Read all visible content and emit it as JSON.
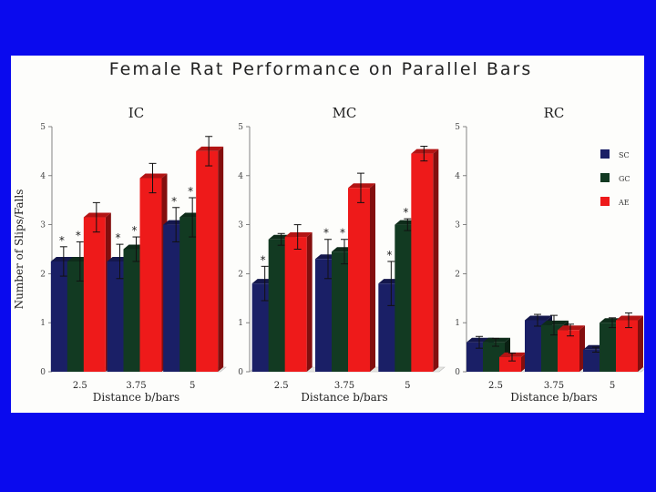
{
  "title": "Female Rat Performance on Parallel Bars",
  "colors": {
    "SC": "#1a1f66",
    "GC": "#123a22",
    "AE": "#ee1a1a",
    "slide_bg": "#0a0aee"
  },
  "chart_data": [
    {
      "type": "bar",
      "panel_title": "IC",
      "categories": [
        "2.5",
        "3.75",
        "5"
      ],
      "xlabel": "Distance b/bars",
      "ylabel": "Number of Slips/Falls",
      "ylim": [
        0,
        5
      ],
      "yticks": [
        "0",
        "1",
        "2",
        "3",
        "4",
        "5"
      ],
      "series": [
        {
          "name": "SC",
          "values": [
            2.25,
            2.25,
            3.0
          ],
          "errors": [
            0.3,
            0.35,
            0.35
          ],
          "star": [
            true,
            true,
            true
          ]
        },
        {
          "name": "GC",
          "values": [
            2.25,
            2.5,
            3.15
          ],
          "errors": [
            0.4,
            0.25,
            0.4
          ],
          "star": [
            true,
            true,
            true
          ]
        },
        {
          "name": "AE",
          "values": [
            3.15,
            3.95,
            4.5
          ],
          "errors": [
            0.3,
            0.3,
            0.3
          ],
          "star": [
            false,
            false,
            false
          ]
        }
      ]
    },
    {
      "type": "bar",
      "panel_title": "MC",
      "categories": [
        "2.5",
        "3.75",
        "5"
      ],
      "xlabel": "Distance b/bars",
      "ylabel": "",
      "ylim": [
        0,
        5
      ],
      "yticks": [
        "0",
        "1",
        "2",
        "3",
        "4",
        "5"
      ],
      "series": [
        {
          "name": "SC",
          "values": [
            1.8,
            2.3,
            1.8
          ],
          "errors": [
            0.35,
            0.4,
            0.45
          ],
          "star": [
            true,
            true,
            true
          ]
        },
        {
          "name": "GC",
          "values": [
            2.7,
            2.45,
            3.0
          ],
          "errors": [
            0.12,
            0.25,
            0.12
          ],
          "star": [
            false,
            true,
            true
          ]
        },
        {
          "name": "AE",
          "values": [
            2.75,
            3.75,
            4.45
          ],
          "errors": [
            0.25,
            0.3,
            0.15
          ],
          "star": [
            false,
            false,
            false
          ]
        }
      ]
    },
    {
      "type": "bar",
      "panel_title": "RC",
      "categories": [
        "2.5",
        "3.75",
        "5"
      ],
      "xlabel": "Distance b/bars",
      "ylabel": "",
      "ylim": [
        0,
        5
      ],
      "yticks": [
        "0",
        "1",
        "2",
        "3",
        "4",
        "5"
      ],
      "legend": [
        "SC",
        "GC",
        "AE"
      ],
      "legend_position": "right",
      "series": [
        {
          "name": "SC",
          "values": [
            0.6,
            1.05,
            0.45
          ],
          "errors": [
            0.12,
            0.12,
            0.05
          ],
          "star": [
            false,
            false,
            false
          ]
        },
        {
          "name": "GC",
          "values": [
            0.6,
            0.95,
            1.0
          ],
          "errors": [
            0.08,
            0.2,
            0.1
          ],
          "star": [
            false,
            false,
            false
          ]
        },
        {
          "name": "AE",
          "values": [
            0.3,
            0.85,
            1.05
          ],
          "errors": [
            0.08,
            0.12,
            0.15
          ],
          "star": [
            false,
            false,
            false
          ]
        }
      ]
    }
  ]
}
